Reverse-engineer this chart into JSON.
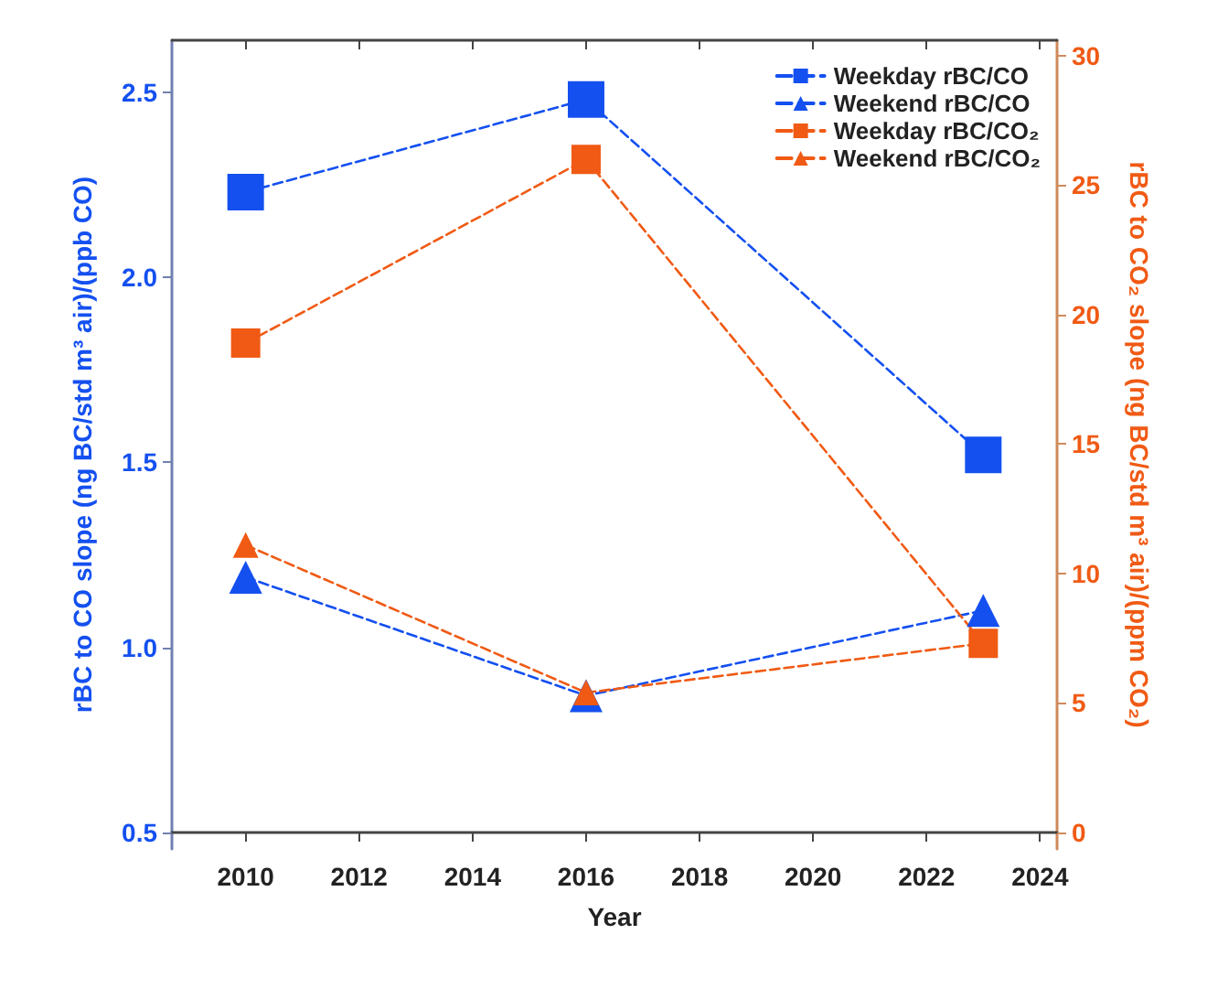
{
  "chart_data": {
    "type": "line",
    "xlabel": "Year",
    "ylabel": "rBC to CO slope (ng BC/std m³ air)/(ppb CO)",
    "y2label": "rBC to CO₂ slope (ng BC/std m³ air)/(ppm CO₂)",
    "x": [
      2010,
      2016,
      2023
    ],
    "xlim": [
      2008.7,
      2024.3
    ],
    "xticks": [
      2010,
      2012,
      2014,
      2016,
      2018,
      2020,
      2022,
      2024
    ],
    "ylim": [
      0.456,
      2.64
    ],
    "yticks": [
      {
        "value": 0.5,
        "label": "0.5"
      },
      {
        "value": 1,
        "label": "1.0"
      },
      {
        "value": 1.5,
        "label": "1.5"
      },
      {
        "value": 2,
        "label": "2.0"
      },
      {
        "value": 2.5,
        "label": "2.5"
      }
    ],
    "y2lim": [
      -0.64,
      30.6
    ],
    "y2ticks": [
      0,
      5,
      10,
      15,
      20,
      25,
      30
    ],
    "series": [
      {
        "name": "Weekday rBC/CO",
        "color": "#1450f0",
        "marker": "square",
        "values": [
          2.23,
          2.48,
          1.52
        ]
      },
      {
        "name": "Weekend rBC/CO",
        "color": "#1450f0",
        "marker": "triangle",
        "values": [
          1.19,
          0.87,
          1.1
        ]
      },
      {
        "name": "Weekday rBC/CO₂",
        "color": "#f05a14",
        "marker": "square",
        "axis": "y2",
        "values": [
          18.9,
          26.0,
          7.3
        ]
      },
      {
        "name": "Weekend rBC/CO₂",
        "color": "#f05a14",
        "marker": "triangle",
        "axis": "y2",
        "values": [
          11.1,
          5.4,
          7.3
        ]
      }
    ],
    "line_style": "dashed",
    "grid": false,
    "legend": "top right"
  }
}
